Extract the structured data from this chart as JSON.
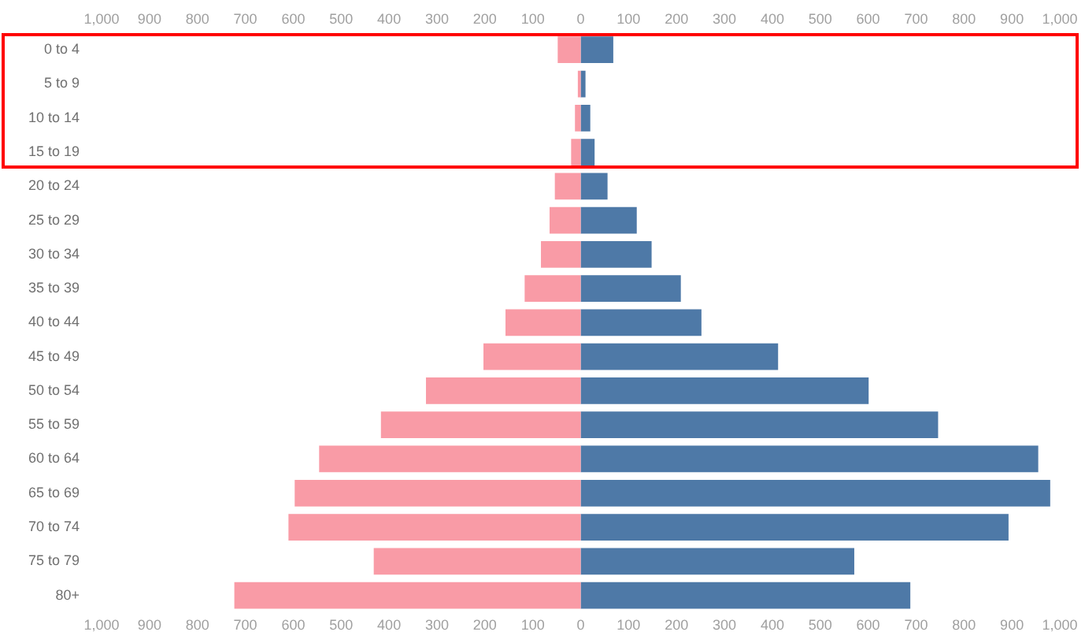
{
  "chart_data": {
    "type": "bar",
    "orientation": "horizontal",
    "stacked": true,
    "categories": [
      "0 to 4",
      "5 to 9",
      "10 to 14",
      "15 to 19",
      "20 to 24",
      "25 to 29",
      "30 to 34",
      "35 to 39",
      "40 to 44",
      "45 to 49",
      "50 to 54",
      "55 to 59",
      "60 to 64",
      "65 to 69",
      "70 to 74",
      "75 to 79",
      "80+"
    ],
    "series": [
      {
        "color": "#f99ba6",
        "values": [
          -48,
          -6,
          -12,
          -20,
          -54,
          -65,
          -83,
          -117,
          -157,
          -203,
          -323,
          -417,
          -546,
          -597,
          -610,
          -432,
          -723
        ]
      },
      {
        "color": "#4e79a7",
        "values": [
          68,
          10,
          20,
          29,
          56,
          117,
          148,
          209,
          252,
          412,
          601,
          746,
          955,
          980,
          893,
          571,
          688
        ]
      }
    ],
    "xlim": [
      -1000,
      1000
    ],
    "xticks": [
      {
        "value": -1000,
        "label": "1,000"
      },
      {
        "value": -900,
        "label": "900"
      },
      {
        "value": -800,
        "label": "800"
      },
      {
        "value": -700,
        "label": "700"
      },
      {
        "value": -600,
        "label": "600"
      },
      {
        "value": -500,
        "label": "500"
      },
      {
        "value": -400,
        "label": "400"
      },
      {
        "value": -300,
        "label": "300"
      },
      {
        "value": -200,
        "label": "200"
      },
      {
        "value": -100,
        "label": "100"
      },
      0,
      100,
      200,
      300,
      400,
      500,
      600,
      700,
      800,
      900,
      {
        "value": 1000,
        "label": "1,000"
      }
    ],
    "x2lim": [
      -1000,
      1000
    ],
    "x2ticks": [
      {
        "value": -1000,
        "label": "1,000"
      },
      {
        "value": -900,
        "label": "900"
      },
      {
        "value": -800,
        "label": "800"
      },
      {
        "value": -700,
        "label": "700"
      },
      {
        "value": -600,
        "label": "600"
      },
      {
        "value": -500,
        "label": "500"
      },
      {
        "value": -400,
        "label": "400"
      },
      {
        "value": -300,
        "label": "300"
      },
      {
        "value": -200,
        "label": "200"
      },
      {
        "value": -100,
        "label": "100"
      },
      0,
      100,
      200,
      300,
      400,
      500,
      600,
      700,
      800,
      900,
      {
        "value": 1000,
        "label": "1,000"
      }
    ],
    "grid": false,
    "legend": false
  }
}
